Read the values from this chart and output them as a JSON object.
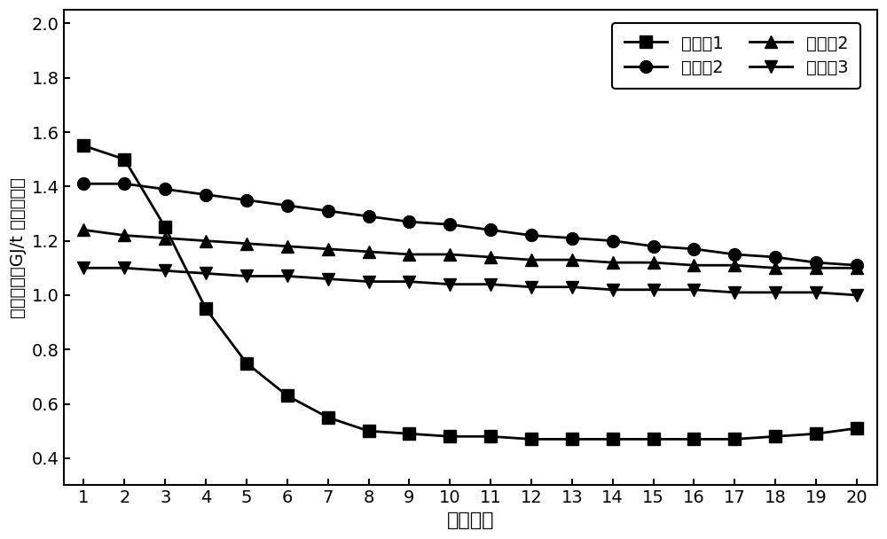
{
  "x": [
    1,
    2,
    3,
    4,
    5,
    6,
    7,
    8,
    9,
    10,
    11,
    12,
    13,
    14,
    15,
    16,
    17,
    18,
    19,
    20
  ],
  "series": {
    "对比例1": [
      1.55,
      1.5,
      1.25,
      0.95,
      0.75,
      0.63,
      0.55,
      0.5,
      0.49,
      0.48,
      0.48,
      0.47,
      0.47,
      0.47,
      0.47,
      0.47,
      0.47,
      0.48,
      0.49,
      0.51
    ],
    "对比例2": [
      1.41,
      1.41,
      1.39,
      1.37,
      1.35,
      1.33,
      1.31,
      1.29,
      1.27,
      1.26,
      1.24,
      1.22,
      1.21,
      1.2,
      1.18,
      1.17,
      1.15,
      1.14,
      1.12,
      1.11
    ],
    "实施例2": [
      1.24,
      1.22,
      1.21,
      1.2,
      1.19,
      1.18,
      1.17,
      1.16,
      1.15,
      1.15,
      1.14,
      1.13,
      1.13,
      1.12,
      1.12,
      1.11,
      1.11,
      1.1,
      1.1,
      1.1
    ],
    "实施例3": [
      1.1,
      1.1,
      1.09,
      1.08,
      1.07,
      1.07,
      1.06,
      1.05,
      1.05,
      1.04,
      1.04,
      1.03,
      1.03,
      1.02,
      1.02,
      1.02,
      1.01,
      1.01,
      1.01,
      1.0
    ]
  },
  "markers": {
    "对比例1": "s",
    "对比例2": "o",
    "实施例2": "^",
    "实施例3": "v"
  },
  "line_color": "#000000",
  "marker_color": "#000000",
  "xlabel": "循环次数",
  "ylabel": "能量密度（GJ/t 储热介质）",
  "ylim": [
    0.3,
    2.05
  ],
  "xlim": [
    0.5,
    20.5
  ],
  "yticks": [
    0.4,
    0.6,
    0.8,
    1.0,
    1.2,
    1.4,
    1.6,
    1.8,
    2.0
  ],
  "xticks": [
    1,
    2,
    3,
    4,
    5,
    6,
    7,
    8,
    9,
    10,
    11,
    12,
    13,
    14,
    15,
    16,
    17,
    18,
    19,
    20
  ],
  "legend_order": [
    "对比例1",
    "对比例2",
    "实施例2",
    "实施例3"
  ],
  "marker_size": 10,
  "line_width": 2.0,
  "figsize": [
    10.0,
    6.08
  ],
  "dpi": 100
}
